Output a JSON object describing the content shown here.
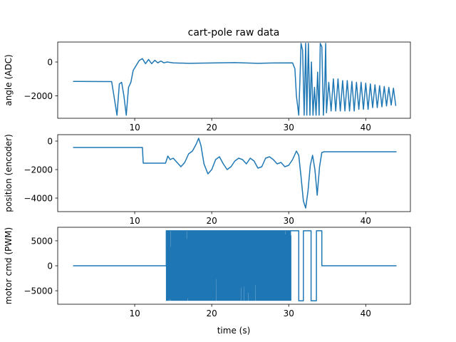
{
  "figure": {
    "title": "cart-pole raw data",
    "xlabel": "time (s)"
  },
  "chart_data": [
    {
      "type": "line",
      "ylabel": "angle (ADC)",
      "xlim": [
        0.0,
        45.8
      ],
      "ylim": [
        -3330,
        1180
      ],
      "xticks": [
        10,
        20,
        30,
        40
      ],
      "yticks": [
        0,
        -2000
      ],
      "show_xtick_labels": true,
      "color": "#1f77b4",
      "series": [
        {
          "x": [
            2.0,
            7.0,
            7.3,
            7.7,
            8.0,
            8.3,
            8.6,
            8.9,
            9.2,
            9.5,
            9.8,
            10.2,
            10.6,
            11.0,
            11.4,
            11.8,
            12.2,
            12.6,
            13.0,
            13.4,
            13.8,
            14.2,
            15,
            17,
            20,
            23,
            26,
            28,
            30.5,
            30.8,
            31.0,
            31.3,
            31.5,
            31.6,
            31.8,
            32.0,
            32.2,
            32.35,
            32.55,
            32.75,
            32.95,
            33.15,
            33.35,
            33.55,
            33.75,
            33.95,
            34.1,
            34.3,
            34.5,
            34.7,
            34.8,
            34.9,
            35.2,
            35.5,
            35.8,
            36.1,
            36.4,
            36.7,
            37.0,
            37.3,
            37.6,
            37.9,
            38.2,
            38.5,
            38.8,
            39.1,
            39.4,
            39.7,
            40.0,
            40.3,
            40.6,
            40.9,
            41.2,
            41.5,
            41.8,
            42.1,
            42.4,
            42.7,
            43.0,
            43.3,
            43.6,
            43.9
          ],
          "y": [
            -1150,
            -1160,
            -2000,
            -3150,
            -1300,
            -1200,
            -2000,
            -3150,
            -1500,
            -1200,
            -500,
            -200,
            100,
            200,
            -100,
            150,
            -100,
            100,
            -50,
            60,
            -50,
            0,
            -50,
            -80,
            -60,
            -40,
            -80,
            -60,
            -50,
            -400,
            -2000,
            -3150,
            -500,
            1100,
            700,
            -3150,
            1100,
            -3150,
            1100,
            -3150,
            0,
            -3150,
            -1500,
            -3150,
            -600,
            -3150,
            1100,
            900,
            -3150,
            -1000,
            1100,
            -3000,
            -1200,
            -2900,
            -1000,
            -2900,
            -1000,
            -2900,
            -1100,
            -2900,
            -1100,
            -2900,
            -1150,
            -2900,
            -1200,
            -2800,
            -1200,
            -2800,
            -1250,
            -2800,
            -1300,
            -2700,
            -1350,
            -2700,
            -1400,
            -2650,
            -1450,
            -2600,
            -1500,
            -2550,
            -1550,
            -2600
          ]
        }
      ]
    },
    {
      "type": "line",
      "ylabel": "position (encoder)",
      "xlim": [
        0.0,
        45.8
      ],
      "ylim": [
        -4950,
        450
      ],
      "xticks": [
        10,
        20,
        30,
        40
      ],
      "yticks": [
        0,
        -2000,
        -4000
      ],
      "show_xtick_labels": true,
      "color": "#1f77b4",
      "series": [
        {
          "x": [
            2.0,
            11.0,
            11.1,
            14.0,
            14.3,
            14.6,
            15.0,
            15.5,
            16.0,
            16.5,
            17.0,
            17.5,
            18.0,
            18.3,
            18.6,
            19.0,
            19.5,
            20.0,
            20.5,
            21.0,
            21.5,
            22.0,
            22.5,
            23.0,
            23.5,
            24.0,
            24.5,
            25.0,
            25.5,
            26.0,
            26.5,
            27.0,
            27.5,
            28.0,
            28.5,
            29.0,
            29.5,
            30.0,
            30.5,
            31.0,
            31.3,
            31.6,
            31.9,
            32.2,
            32.5,
            32.8,
            33.1,
            33.4,
            33.7,
            34.0,
            34.3,
            34.6,
            44.0
          ],
          "y": [
            -450,
            -450,
            -1550,
            -1550,
            -1050,
            -1300,
            -1200,
            -1500,
            -1800,
            -1500,
            -900,
            -700,
            -200,
            200,
            -300,
            -1600,
            -2300,
            -2000,
            -1300,
            -1100,
            -1600,
            -2000,
            -1800,
            -1400,
            -1200,
            -1300,
            -1600,
            -1200,
            -1400,
            -1900,
            -1800,
            -1200,
            -1100,
            -1300,
            -1600,
            -1500,
            -1800,
            -1700,
            -1300,
            -700,
            -1000,
            -2500,
            -4200,
            -4700,
            -3500,
            -1700,
            -1000,
            -2000,
            -3800,
            -1800,
            -800,
            -750,
            -750
          ]
        }
      ]
    },
    {
      "type": "line",
      "ylabel": "motor cmd (PWM)",
      "xlabel": "time (s)",
      "xlim": [
        0.0,
        45.8
      ],
      "ylim": [
        -7700,
        7700
      ],
      "xticks": [
        10,
        20,
        30,
        40
      ],
      "yticks": [
        5000,
        0,
        -5000
      ],
      "show_xtick_labels": true,
      "color": "#1f77b4",
      "noise_band": {
        "x_start": 14.1,
        "x_end": 30.3,
        "ymin": -7000,
        "ymax": 7000
      },
      "series": [
        {
          "x": [
            2.0,
            14.1,
            14.1,
            30.3,
            30.3,
            31.3,
            31.3,
            31.9,
            31.9,
            32.9,
            32.9,
            33.6,
            33.6,
            34.3,
            34.3,
            44.0
          ],
          "y": [
            0,
            0,
            7000,
            7000,
            7000,
            7000,
            -7000,
            -7000,
            7000,
            7000,
            -7000,
            -7000,
            7000,
            7000,
            0,
            0
          ]
        }
      ]
    }
  ]
}
